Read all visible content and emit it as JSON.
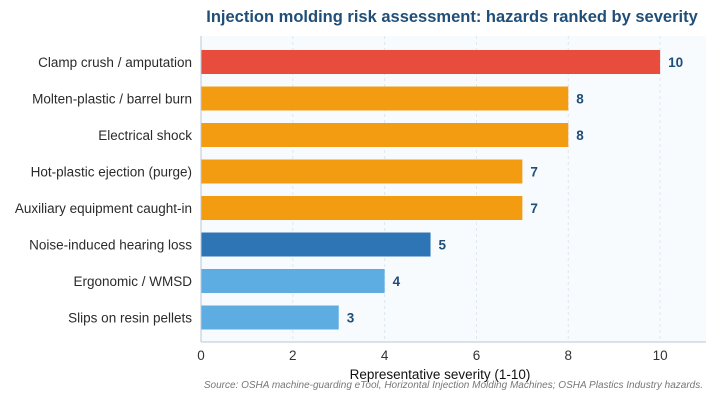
{
  "chart_data": {
    "type": "bar",
    "orientation": "horizontal",
    "title": "Injection molding risk assessment: hazards ranked by severity",
    "xlabel": "Representative severity (1-10)",
    "ylabel": "",
    "xlim": [
      0,
      11
    ],
    "xticks": [
      0,
      2,
      4,
      6,
      8,
      10
    ],
    "grid": true,
    "categories": [
      "Clamp crush / amputation",
      "Molten-plastic / barrel burn",
      "Electrical shock",
      "Hot-plastic ejection (purge)",
      "Auxiliary equipment caught-in",
      "Noise-induced hearing loss",
      "Ergonomic / WMSD",
      "Slips on resin pellets"
    ],
    "values": [
      10,
      8,
      8,
      7,
      7,
      5,
      4,
      3
    ],
    "bar_colors": [
      "#e84c3d",
      "#f39c12",
      "#f39c12",
      "#f39c12",
      "#f39c12",
      "#2e75b6",
      "#5dade2",
      "#5dade2"
    ],
    "source": "Source: OSHA machine-guarding eTool, Horizontal Injection Molding Machines; OSHA Plastics Industry hazards."
  }
}
